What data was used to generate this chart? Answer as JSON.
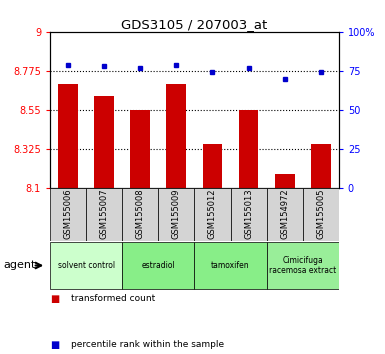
{
  "title": "GDS3105 / 207003_at",
  "samples": [
    "GSM155006",
    "GSM155007",
    "GSM155008",
    "GSM155009",
    "GSM155012",
    "GSM155013",
    "GSM154972",
    "GSM155005"
  ],
  "bar_values": [
    8.7,
    8.63,
    8.55,
    8.7,
    8.35,
    8.55,
    8.18,
    8.35
  ],
  "percentile_values": [
    79,
    78,
    77,
    79,
    74,
    77,
    70,
    74
  ],
  "groups": [
    {
      "label": "solvent control",
      "span": [
        0,
        1
      ],
      "color": "#ccffcc"
    },
    {
      "label": "estradiol",
      "span": [
        2,
        3
      ],
      "color": "#88ee88"
    },
    {
      "label": "tamoxifen",
      "span": [
        4,
        5
      ],
      "color": "#88ee88"
    },
    {
      "label": "Cimicifuga\nracemosa extract",
      "span": [
        6,
        7
      ],
      "color": "#99ee99"
    }
  ],
  "ylim_left": [
    8.1,
    9.0
  ],
  "ylim_right": [
    0,
    100
  ],
  "yticks_left": [
    8.1,
    8.325,
    8.55,
    8.775,
    9.0
  ],
  "yticks_right": [
    0,
    25,
    50,
    75,
    100
  ],
  "ytick_labels_left": [
    "8.1",
    "8.325",
    "8.55",
    "8.775",
    "9"
  ],
  "ytick_labels_right": [
    "0",
    "25",
    "50",
    "75",
    "100%"
  ],
  "bar_color": "#cc0000",
  "dot_color": "#0000cc",
  "bar_width": 0.55,
  "gridline_values": [
    8.325,
    8.55,
    8.775
  ],
  "legend_bar_label": "transformed count",
  "legend_dot_label": "percentile rank within the sample",
  "agent_label": "agent",
  "sample_bg_color": "#d4d4d4",
  "plot_bg_color": "#ffffff"
}
